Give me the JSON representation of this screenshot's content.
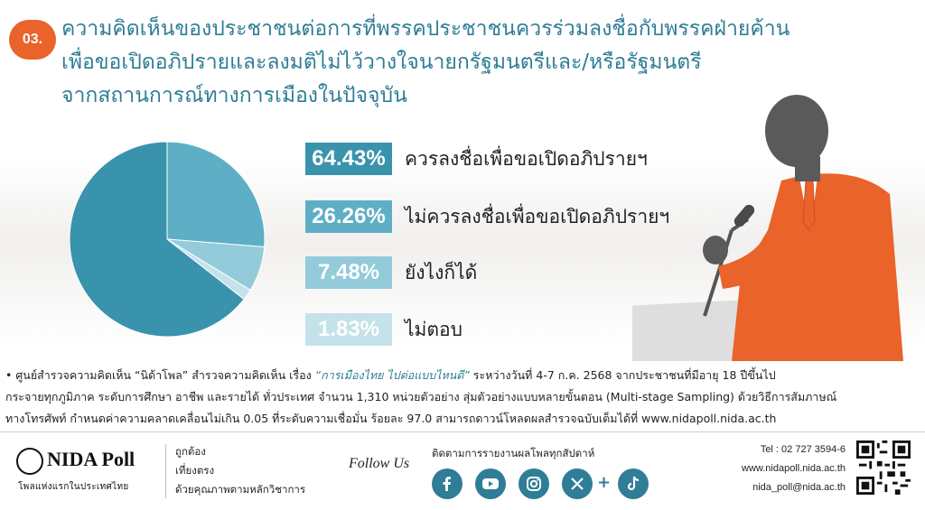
{
  "badge": "03.",
  "title_lines": [
    "ความคิดเห็นของประชาชนต่อการที่พรรคประชาชนควรร่วมลงชื่อกับพรรคฝ่ายค้าน",
    "เพื่อขอเปิดอภิปรายและลงมติไม่ไว้วางใจนายกรัฐมนตรีและ/หรือรัฐมนตรี",
    "จากสถานการณ์ทางการเมืองในปัจจุบัน"
  ],
  "chart_data": {
    "type": "pie",
    "categories": [
      "ควรลงชื่อเพื่อขอเปิดอภิปรายฯ",
      "ไม่ควรลงชื่อเพื่อขอเปิดอภิปรายฯ",
      "ยังไงก็ได้",
      "ไม่ตอบ"
    ],
    "values": [
      64.43,
      26.26,
      7.48,
      1.83
    ],
    "value_labels": [
      "64.43%",
      "26.26%",
      "7.48%",
      "1.83%"
    ],
    "colors": [
      "#3a93ad",
      "#5eafc5",
      "#93cbda",
      "#c4e2ea"
    ]
  },
  "note_lines": {
    "line1_a": "• ศูนย์สำรวจความคิดเห็น “นิด้าโพล” สำรวจความคิดเห็น เรื่อง ",
    "line1_b": "“การเมืองไทย ไปต่อแบบไหนดี”",
    "line1_c": " ระหว่างวันที่ 4-7 ก.ค. 2568 จากประชาชนที่มีอายุ 18 ปีขึ้นไป",
    "line2": "กระจายทุกภูมิภาค ระดับการศึกษา อาชีพ และรายได้ ทั่วประเทศ จำนวน 1,310 หน่วยตัวอย่าง สุ่มตัวอย่างแบบหลายขั้นตอน (Multi-stage Sampling) ด้วยวิธีการสัมภาษณ์",
    "line3": "ทางโทรศัพท์ กำหนดค่าความคลาดเคลื่อนไม่เกิน 0.05 ที่ระดับความเชื่อมั่น ร้อยละ 97.0 สามารถดาวน์โหลดผลสำรวจฉบับเต็มได้ที่ www.nidapoll.nida.ac.th"
  },
  "footer": {
    "logo_text": "NIDA Poll",
    "logo_sub": "โพลแห่งแรกในประเทศไทย",
    "values": [
      "ถูกต้อง",
      "เที่ยงตรง",
      "ด้วยคุณภาพตามหลักวิชาการ"
    ],
    "follow": "Follow Us",
    "social_title": "ติดตามการรายงานผลโพลทุกสัปดาห์",
    "plus": "+",
    "social_icons": [
      "facebook-icon",
      "youtube-icon",
      "instagram-icon",
      "x-icon",
      "tiktok-icon"
    ],
    "contact": [
      "Tel : 02 727 3594-6",
      "www.nidapoll.nida.ac.th",
      "nida_poll@nida.ac.th"
    ]
  },
  "colors": {
    "accent": "#2f7d96",
    "badge": "#e9632a",
    "suit": "#e9632a"
  }
}
